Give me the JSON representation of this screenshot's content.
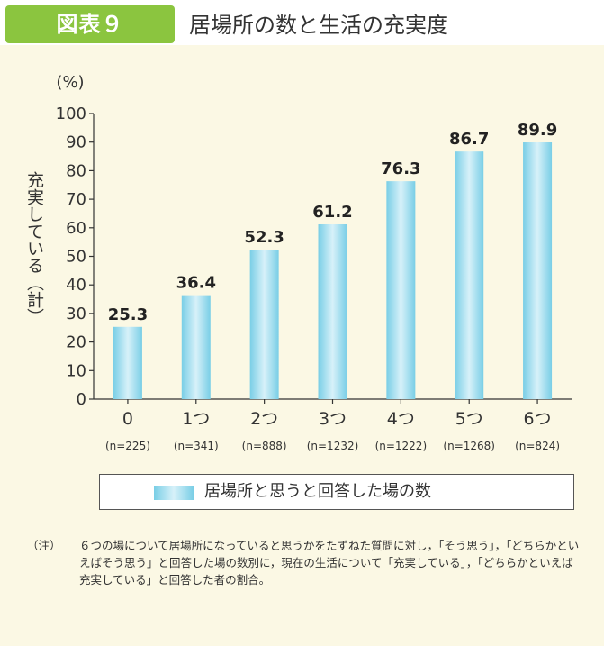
{
  "figure": {
    "badge": "図表９",
    "title": "居場所の数と生活の充実度"
  },
  "chart_data": {
    "type": "bar",
    "categories": [
      "0",
      "1つ",
      "2つ",
      "3つ",
      "4つ",
      "5つ",
      "6つ"
    ],
    "n_labels": [
      "(n=225)",
      "(n=341)",
      "(n=888)",
      "(n=1232)",
      "(n=1222)",
      "(n=1268)",
      "(n=824)"
    ],
    "series": [
      {
        "name": "居場所と思うと回答した場の数",
        "values": [
          25.3,
          36.4,
          52.3,
          61.2,
          76.3,
          86.7,
          89.9
        ]
      }
    ],
    "value_labels": [
      "25.3",
      "36.4",
      "52.3",
      "61.2",
      "76.3",
      "86.7",
      "89.9"
    ],
    "unit": "(%)",
    "ylabel": "充実している（計）",
    "yticks": [
      "0",
      "10",
      "20",
      "30",
      "40",
      "50",
      "60",
      "70",
      "80",
      "90",
      "100"
    ],
    "ylim": [
      0,
      100
    ],
    "grid": false,
    "legend_position": "bottom",
    "bar_color": "#79cee6",
    "bar_highlight_color": "#d7f1f9"
  },
  "legend": {
    "label": "居場所と思うと回答した場の数"
  },
  "note": {
    "mark": "（注）",
    "text": "６つの場について居場所になっていると思うかをたずねた質問に対し，「そう思う」，「どちらかといえばそう思う」と回答した場の数別に，現在の生活について「充実している」，「どちらかといえば充実している」と回答した者の割合。"
  }
}
